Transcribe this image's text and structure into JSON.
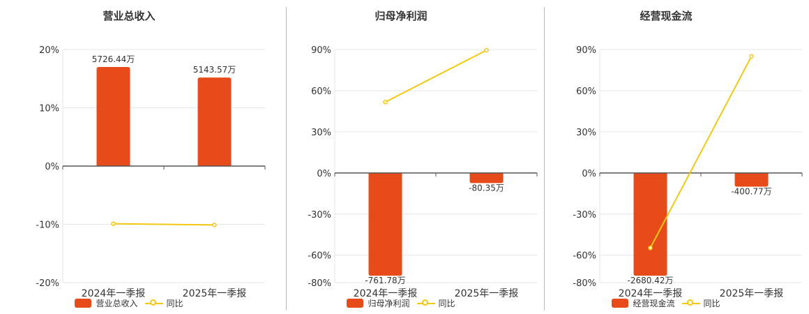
{
  "colors": {
    "bar": "#e84b1a",
    "line": "#f2c811",
    "grid": "#e6e6ee",
    "axis": "#555555",
    "text": "#333333"
  },
  "chart_data": [
    {
      "type": "bar",
      "title": "营业总收入",
      "categories": [
        "2024年一季报",
        "2025年一季报"
      ],
      "ylim": [
        -20,
        20
      ],
      "yticks": [
        20,
        10,
        0,
        -10,
        -20
      ],
      "ytick_labels": [
        "20%",
        "10%",
        "0%",
        "-10%",
        "-20%"
      ],
      "series": [
        {
          "name": "营业总收入",
          "kind": "bar",
          "values": [
            17.0,
            15.2
          ],
          "labels": [
            "5726.44万",
            "5143.57万"
          ]
        },
        {
          "name": "同比",
          "kind": "line",
          "values": [
            -9.9,
            -10.1
          ]
        }
      ],
      "legend": [
        "营业总收入",
        "同比"
      ]
    },
    {
      "type": "bar",
      "title": "归母净利润",
      "categories": [
        "2024年一季报",
        "2025年一季报"
      ],
      "ylim": [
        -80,
        90
      ],
      "yticks": [
        90,
        60,
        30,
        0,
        -30,
        -60,
        -80
      ],
      "ytick_labels": [
        "90%",
        "60%",
        "30%",
        "0%",
        "-30%",
        "-60%",
        "-80%"
      ],
      "series": [
        {
          "name": "归母净利润",
          "kind": "bar",
          "values": [
            -75,
            -7.4
          ],
          "labels": [
            "-761.78万",
            "-80.35万"
          ]
        },
        {
          "name": "同比",
          "kind": "line",
          "values": [
            51.7,
            89.5
          ]
        }
      ],
      "legend": [
        "归母净利润",
        "同比"
      ]
    },
    {
      "type": "bar",
      "title": "经营现金流",
      "categories": [
        "2024年一季报",
        "2025年一季报"
      ],
      "ylim": [
        -80,
        90
      ],
      "yticks": [
        90,
        60,
        30,
        0,
        -30,
        -60,
        -80
      ],
      "ytick_labels": [
        "90%",
        "60%",
        "30%",
        "0%",
        "-30%",
        "-60%",
        "-80%"
      ],
      "series": [
        {
          "name": "经营现金流",
          "kind": "bar",
          "values": [
            -75,
            -10
          ],
          "labels": [
            "-2680.42万",
            "-400.77万"
          ]
        },
        {
          "name": "同比",
          "kind": "line",
          "values": [
            -54.7,
            85.0
          ]
        }
      ],
      "legend": [
        "经营现金流",
        "同比"
      ]
    }
  ]
}
